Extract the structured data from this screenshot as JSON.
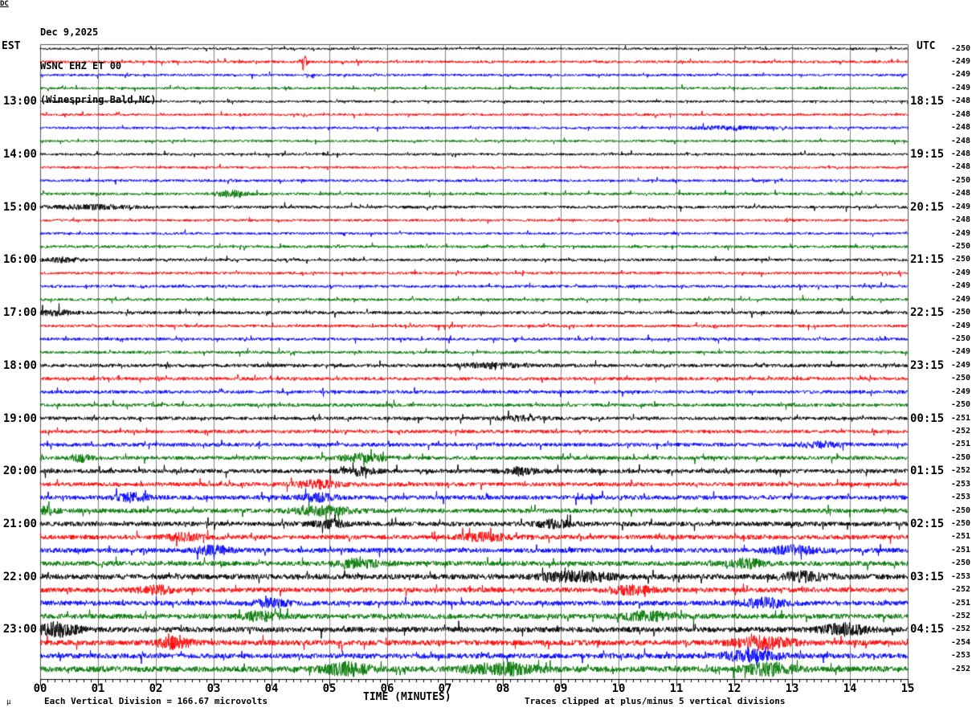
{
  "title": {
    "date": "Dec 9,2025",
    "station": "WSNC EHZ ET 00",
    "location": "(Winespring Bald,NC)"
  },
  "axes": {
    "left_label": "EST",
    "right_label": "UTC",
    "dc_label": "DC",
    "x_title": "TIME (MINUTES)",
    "x_ticks": [
      "00",
      "01",
      "02",
      "03",
      "04",
      "05",
      "06",
      "07",
      "08",
      "09",
      "10",
      "11",
      "12",
      "13",
      "14",
      "15"
    ]
  },
  "footer": {
    "mu": "μ",
    "left_note": "Each Vertical Division =  166.67 microvolts",
    "right_note": "Traces clipped at plus/minus 5 vertical divisions"
  },
  "chart_data": {
    "type": "line",
    "subtype": "helicorder-seismogram",
    "title": "WSNC EHZ ET 00 webicorder, Dec 9,2025, Winespring Bald NC",
    "xlabel": "TIME (MINUTES)",
    "x_range_minutes": [
      0,
      15
    ],
    "row_duration_minutes": 15,
    "rows_per_hour": 4,
    "clip_divisions": 5,
    "microvolts_per_division": 166.67,
    "grid": true,
    "seed": 1337,
    "colors": {
      "black": "#000000",
      "red": "#ff0000",
      "blue": "#0000ff",
      "green": "#007700"
    },
    "grid_color": "#808080",
    "border_color": "#555555",
    "rows": [
      {
        "color": "black",
        "dc": "-250",
        "amp": 1.4,
        "bursts": []
      },
      {
        "color": "red",
        "dc": "-249",
        "amp": 1.6,
        "bursts": [
          {
            "m": 4.56,
            "w": 0.05,
            "a": 6.0
          }
        ]
      },
      {
        "color": "blue",
        "dc": "-249",
        "amp": 1.5,
        "bursts": []
      },
      {
        "color": "green",
        "dc": "-249",
        "amp": 1.5,
        "bursts": []
      },
      {
        "color": "black",
        "est": "13:00",
        "utc": "18:15",
        "dc": "-248",
        "amp": 1.4,
        "bursts": []
      },
      {
        "color": "red",
        "dc": "-248",
        "amp": 1.5,
        "bursts": []
      },
      {
        "color": "blue",
        "dc": "-248",
        "amp": 1.5,
        "bursts": [
          {
            "m": 11.9,
            "w": 0.7,
            "a": 1.2
          }
        ]
      },
      {
        "color": "green",
        "dc": "-248",
        "amp": 1.5,
        "bursts": []
      },
      {
        "color": "black",
        "est": "14:00",
        "utc": "19:15",
        "dc": "-248",
        "amp": 1.5,
        "bursts": []
      },
      {
        "color": "red",
        "dc": "-248",
        "amp": 1.4,
        "bursts": []
      },
      {
        "color": "blue",
        "dc": "-250",
        "amp": 1.6,
        "bursts": []
      },
      {
        "color": "green",
        "dc": "-248",
        "amp": 1.7,
        "bursts": [
          {
            "m": 3.3,
            "w": 0.25,
            "a": 2.2
          }
        ]
      },
      {
        "color": "black",
        "est": "15:00",
        "utc": "20:15",
        "dc": "-249",
        "amp": 1.8,
        "bursts": [
          {
            "m": 0.9,
            "w": 0.7,
            "a": 1.2
          }
        ]
      },
      {
        "color": "red",
        "dc": "-248",
        "amp": 1.5,
        "bursts": []
      },
      {
        "color": "blue",
        "dc": "-249",
        "amp": 1.5,
        "bursts": []
      },
      {
        "color": "green",
        "dc": "-250",
        "amp": 1.7,
        "bursts": []
      },
      {
        "color": "black",
        "est": "16:00",
        "utc": "21:15",
        "dc": "-250",
        "amp": 1.7,
        "bursts": [
          {
            "m": 0.4,
            "w": 0.3,
            "a": 1.4
          }
        ]
      },
      {
        "color": "red",
        "dc": "-249",
        "amp": 1.6,
        "bursts": []
      },
      {
        "color": "blue",
        "dc": "-249",
        "amp": 1.7,
        "bursts": []
      },
      {
        "color": "green",
        "dc": "-249",
        "amp": 1.7,
        "bursts": []
      },
      {
        "color": "black",
        "est": "17:00",
        "utc": "22:15",
        "dc": "-250",
        "amp": 1.9,
        "bursts": [
          {
            "m": 0.3,
            "w": 0.3,
            "a": 1.4
          }
        ]
      },
      {
        "color": "red",
        "dc": "-249",
        "amp": 1.7,
        "bursts": []
      },
      {
        "color": "blue",
        "dc": "-250",
        "amp": 1.8,
        "bursts": []
      },
      {
        "color": "green",
        "dc": "-249",
        "amp": 1.8,
        "bursts": []
      },
      {
        "color": "black",
        "est": "18:00",
        "utc": "23:15",
        "dc": "-249",
        "amp": 2.1,
        "bursts": [
          {
            "m": 7.8,
            "w": 0.5,
            "a": 1.2
          }
        ]
      },
      {
        "color": "red",
        "dc": "-250",
        "amp": 2.0,
        "bursts": []
      },
      {
        "color": "blue",
        "dc": "-249",
        "amp": 2.1,
        "bursts": []
      },
      {
        "color": "green",
        "dc": "-250",
        "amp": 2.1,
        "bursts": []
      },
      {
        "color": "black",
        "est": "19:00",
        "utc": "00:15",
        "dc": "-251",
        "amp": 2.1,
        "bursts": [
          {
            "m": 8.3,
            "w": 0.4,
            "a": 1.3
          }
        ]
      },
      {
        "color": "red",
        "dc": "-252",
        "amp": 2.1,
        "bursts": []
      },
      {
        "color": "blue",
        "dc": "-251",
        "amp": 2.3,
        "bursts": [
          {
            "m": 13.5,
            "w": 0.4,
            "a": 1.4
          }
        ]
      },
      {
        "color": "green",
        "dc": "-250",
        "amp": 2.4,
        "bursts": [
          {
            "m": 0.7,
            "w": 0.2,
            "a": 1.6
          },
          {
            "m": 5.6,
            "w": 0.4,
            "a": 1.8
          }
        ]
      },
      {
        "color": "black",
        "est": "20:00",
        "utc": "01:15",
        "dc": "-252",
        "amp": 2.6,
        "bursts": [
          {
            "m": 5.5,
            "w": 0.3,
            "a": 1.6
          },
          {
            "m": 8.3,
            "w": 0.3,
            "a": 1.5
          }
        ]
      },
      {
        "color": "red",
        "dc": "-253",
        "amp": 2.5,
        "bursts": [
          {
            "m": 4.8,
            "w": 0.4,
            "a": 1.7
          }
        ]
      },
      {
        "color": "blue",
        "dc": "-253",
        "amp": 2.7,
        "bursts": [
          {
            "m": 1.6,
            "w": 0.3,
            "a": 1.7
          },
          {
            "m": 4.8,
            "w": 0.3,
            "a": 1.5
          }
        ]
      },
      {
        "color": "green",
        "dc": "-250",
        "amp": 2.8,
        "bursts": [
          {
            "m": 0.15,
            "w": 0.15,
            "a": 1.8
          },
          {
            "m": 4.9,
            "w": 0.5,
            "a": 1.7
          }
        ]
      },
      {
        "color": "black",
        "est": "21:00",
        "utc": "02:15",
        "dc": "-250",
        "amp": 2.8,
        "bursts": [
          {
            "m": 5.0,
            "w": 0.3,
            "a": 1.5
          },
          {
            "m": 8.9,
            "w": 0.3,
            "a": 1.5
          }
        ]
      },
      {
        "color": "red",
        "dc": "-251",
        "amp": 2.8,
        "bursts": [
          {
            "m": 2.5,
            "w": 0.3,
            "a": 1.5
          },
          {
            "m": 7.7,
            "w": 0.4,
            "a": 1.6
          }
        ]
      },
      {
        "color": "blue",
        "dc": "-251",
        "amp": 3.0,
        "bursts": [
          {
            "m": 3.0,
            "w": 0.3,
            "a": 1.5
          },
          {
            "m": 13.0,
            "w": 0.4,
            "a": 1.5
          }
        ]
      },
      {
        "color": "green",
        "dc": "-250",
        "amp": 3.0,
        "bursts": [
          {
            "m": 5.5,
            "w": 0.4,
            "a": 1.5
          },
          {
            "m": 12.2,
            "w": 0.3,
            "a": 1.6
          }
        ]
      },
      {
        "color": "black",
        "est": "22:00",
        "utc": "03:15",
        "dc": "-253",
        "amp": 3.3,
        "bursts": [
          {
            "m": 9.3,
            "w": 0.6,
            "a": 1.6
          },
          {
            "m": 13.2,
            "w": 0.4,
            "a": 1.5
          }
        ]
      },
      {
        "color": "red",
        "dc": "-252",
        "amp": 3.0,
        "bursts": [
          {
            "m": 2.0,
            "w": 0.3,
            "a": 1.4
          },
          {
            "m": 10.2,
            "w": 0.4,
            "a": 1.5
          }
        ]
      },
      {
        "color": "blue",
        "dc": "-251",
        "amp": 3.0,
        "bursts": [
          {
            "m": 4.0,
            "w": 0.3,
            "a": 1.4
          },
          {
            "m": 12.5,
            "w": 0.4,
            "a": 1.7
          }
        ]
      },
      {
        "color": "green",
        "dc": "-252",
        "amp": 3.2,
        "bursts": [
          {
            "m": 3.8,
            "w": 0.3,
            "a": 1.6
          },
          {
            "m": 10.5,
            "w": 0.4,
            "a": 1.5
          }
        ]
      },
      {
        "color": "black",
        "est": "23:00",
        "utc": "04:15",
        "dc": "-252",
        "amp": 3.3,
        "bursts": [
          {
            "m": 0.3,
            "w": 0.35,
            "a": 2.2
          },
          {
            "m": 13.9,
            "w": 0.4,
            "a": 1.8
          }
        ]
      },
      {
        "color": "red",
        "dc": "-254",
        "amp": 3.3,
        "bursts": [
          {
            "m": 2.3,
            "w": 0.3,
            "a": 1.8
          },
          {
            "m": 12.5,
            "w": 0.5,
            "a": 2.0
          }
        ]
      },
      {
        "color": "blue",
        "dc": "-253",
        "amp": 3.2,
        "bursts": [
          {
            "m": 12.3,
            "w": 0.5,
            "a": 1.8
          }
        ]
      },
      {
        "color": "green",
        "dc": "-252",
        "amp": 3.6,
        "bursts": [
          {
            "m": 5.3,
            "w": 0.4,
            "a": 1.9
          },
          {
            "m": 8.0,
            "w": 0.6,
            "a": 1.7
          },
          {
            "m": 12.6,
            "w": 0.4,
            "a": 1.8
          }
        ]
      }
    ]
  }
}
